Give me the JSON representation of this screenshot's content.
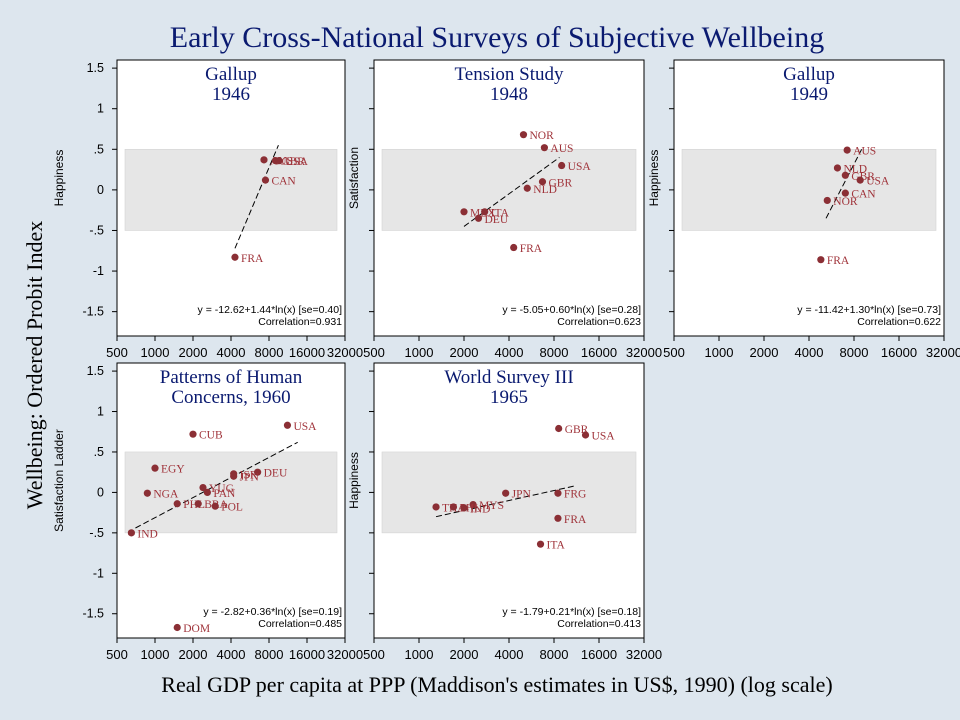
{
  "title": "Early Cross-National Surveys of Subjective Wellbeing",
  "ylabel": "Wellbeing: Ordered Probit Index",
  "xlabel": "Real GDP per capita at PPP (Maddison's estimates in US$, 1990) (log scale)",
  "colors": {
    "background": "#dde6ee",
    "panel": "#ffffff",
    "band": "#e6e6e6",
    "marker": "#8b2f35",
    "label": "#a0343b"
  },
  "chart_data": [
    {
      "type": "scatter",
      "title": [
        "Gallup",
        "1946"
      ],
      "ylabel": "Happiness",
      "equation": "y = -12.62+1.44*ln(x) [se=0.40]",
      "correlation": "Correlation=0.931",
      "fit": {
        "x": [
          4300,
          9500
        ],
        "y": [
          -0.72,
          0.55
        ]
      },
      "points": [
        {
          "label": "FRA",
          "x": 4300,
          "y": -0.83
        },
        {
          "label": "CAN",
          "x": 7500,
          "y": 0.12
        },
        {
          "label": "AUS",
          "x": 7300,
          "y": 0.37
        },
        {
          "label": "GBR",
          "x": 9000,
          "y": 0.36
        },
        {
          "label": "USA",
          "x": 9600,
          "y": 0.36
        }
      ]
    },
    {
      "type": "scatter",
      "title": [
        "Tension Study",
        "1948"
      ],
      "ylabel": "Satisfaction",
      "equation": "y = -5.05+0.60*ln(x) [se=0.28]",
      "correlation": "Correlation=0.623",
      "fit": {
        "x": [
          2000,
          8700
        ],
        "y": [
          -0.45,
          0.4
        ]
      },
      "points": [
        {
          "label": "NOR",
          "x": 5000,
          "y": 0.68
        },
        {
          "label": "AUS",
          "x": 6900,
          "y": 0.52
        },
        {
          "label": "USA",
          "x": 9000,
          "y": 0.3
        },
        {
          "label": "GBR",
          "x": 6700,
          "y": 0.1
        },
        {
          "label": "NLD",
          "x": 5300,
          "y": 0.02
        },
        {
          "label": "MEX",
          "x": 2000,
          "y": -0.27
        },
        {
          "label": "ITA",
          "x": 2750,
          "y": -0.27
        },
        {
          "label": "DEU",
          "x": 2500,
          "y": -0.35
        },
        {
          "label": "FRA",
          "x": 4300,
          "y": -0.71
        }
      ]
    },
    {
      "type": "scatter",
      "title": [
        "Gallup",
        "1949"
      ],
      "ylabel": "Happiness",
      "equation": "y = -11.42+1.30*ln(x) [se=0.73]",
      "correlation": "Correlation=0.622",
      "fit": {
        "x": [
          5200,
          9000
        ],
        "y": [
          -0.35,
          0.5
        ]
      },
      "points": [
        {
          "label": "AUS",
          "x": 7200,
          "y": 0.49
        },
        {
          "label": "NLD",
          "x": 6200,
          "y": 0.27
        },
        {
          "label": "GBR",
          "x": 7000,
          "y": 0.18
        },
        {
          "label": "USA",
          "x": 8800,
          "y": 0.12
        },
        {
          "label": "CAN",
          "x": 7000,
          "y": -0.04
        },
        {
          "label": "NOR",
          "x": 5300,
          "y": -0.13
        },
        {
          "label": "FRA",
          "x": 4800,
          "y": -0.86
        }
      ]
    },
    {
      "type": "scatter",
      "title": [
        "Patterns of Human",
        "Concerns, 1960"
      ],
      "ylabel": "Satisfaction Ladder",
      "equation": "y = -2.82+0.36*ln(x) [se=0.19]",
      "correlation": "Correlation=0.485",
      "fit": {
        "x": [
          700,
          13500
        ],
        "y": [
          -0.44,
          0.62
        ]
      },
      "points": [
        {
          "label": "USA",
          "x": 11200,
          "y": 0.83
        },
        {
          "label": "CUB",
          "x": 2000,
          "y": 0.72
        },
        {
          "label": "EGY",
          "x": 1000,
          "y": 0.3
        },
        {
          "label": "ISR",
          "x": 4200,
          "y": 0.23
        },
        {
          "label": "DEU",
          "x": 6500,
          "y": 0.25
        },
        {
          "label": "JPN",
          "x": 4200,
          "y": 0.2
        },
        {
          "label": "YUG",
          "x": 2400,
          "y": 0.06
        },
        {
          "label": "PAN",
          "x": 2600,
          "y": 0.0
        },
        {
          "label": "NGA",
          "x": 870,
          "y": -0.01
        },
        {
          "label": "PHL",
          "x": 1500,
          "y": -0.14
        },
        {
          "label": "BRA",
          "x": 2200,
          "y": -0.14
        },
        {
          "label": "POL",
          "x": 3000,
          "y": -0.17
        },
        {
          "label": "IND",
          "x": 650,
          "y": -0.5
        },
        {
          "label": "DOM",
          "x": 1500,
          "y": -1.67
        }
      ]
    },
    {
      "type": "scatter",
      "title": [
        "World Survey III",
        "1965"
      ],
      "ylabel": "Happiness",
      "equation": "y = -1.79+0.21*ln(x) [se=0.18]",
      "correlation": "Correlation=0.413",
      "fit": {
        "x": [
          1300,
          11000
        ],
        "y": [
          -0.3,
          0.08
        ]
      },
      "points": [
        {
          "label": "GBR",
          "x": 8600,
          "y": 0.79
        },
        {
          "label": "USA",
          "x": 13000,
          "y": 0.71
        },
        {
          "label": "JPN",
          "x": 3800,
          "y": -0.01
        },
        {
          "label": "FRG",
          "x": 8500,
          "y": -0.01
        },
        {
          "label": "MYS",
          "x": 2300,
          "y": -0.15
        },
        {
          "label": "THA",
          "x": 1300,
          "y": -0.18
        },
        {
          "label": "PHL",
          "x": 1700,
          "y": -0.18
        },
        {
          "label": "IND",
          "x": 2000,
          "y": -0.19
        },
        {
          "label": "FRA",
          "x": 8500,
          "y": -0.32
        },
        {
          "label": "ITA",
          "x": 6500,
          "y": -0.64
        }
      ]
    }
  ],
  "axes": {
    "x_ticks": [
      500,
      1000,
      2000,
      4000,
      8000,
      16000,
      32000
    ],
    "y_ticks": [
      1.5,
      1,
      0.5,
      0,
      -0.5,
      -1,
      -1.5
    ],
    "y_tick_labels": [
      "1.5",
      "1",
      ".5",
      "0",
      "-.5",
      "-1",
      "-1.5"
    ],
    "xlim": [
      500,
      32000
    ],
    "ylim": [
      -1.8,
      1.6
    ],
    "band": [
      -0.5,
      0.5
    ],
    "scale": "log"
  }
}
